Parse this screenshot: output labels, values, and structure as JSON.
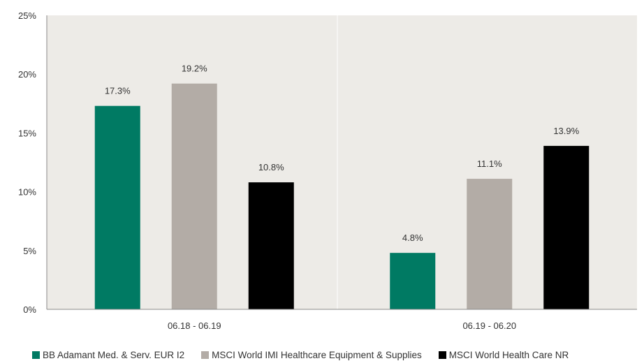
{
  "chart_data": {
    "type": "bar",
    "categories": [
      "06.18 - 06.19",
      "06.19 - 06.20"
    ],
    "series": [
      {
        "name": "BB Adamant Med. & Serv. EUR I2",
        "values": [
          17.3,
          4.8
        ],
        "color": "#007a63"
      },
      {
        "name": "MSCI World IMI Healthcare Equipment & Supplies",
        "values": [
          19.2,
          11.1
        ],
        "color": "#b3aca6"
      },
      {
        "name": "MSCI World Health Care NR",
        "values": [
          10.8,
          13.9
        ],
        "color": "#000000"
      }
    ],
    "data_labels": [
      [
        "17.3%",
        "4.8%"
      ],
      [
        "19.2%",
        "11.1%"
      ],
      [
        "10.8%",
        "13.9%"
      ]
    ],
    "ylim": [
      0,
      25
    ],
    "yticks": [
      "0%",
      "5%",
      "10%",
      "15%",
      "20%",
      "25%"
    ],
    "plot_background": "#edebe7",
    "grid": false,
    "legend_position": "bottom"
  }
}
